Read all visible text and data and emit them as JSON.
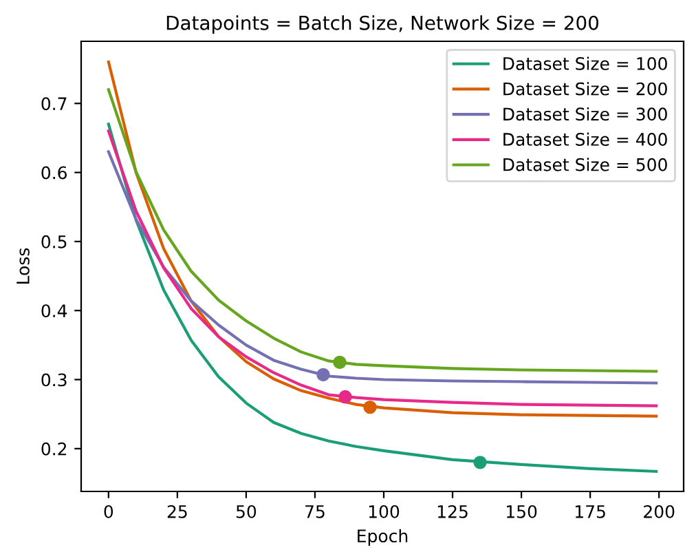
{
  "chart_data": {
    "type": "line",
    "title": "Datapoints = Batch Size, Network Size = 200",
    "xlabel": "Epoch",
    "ylabel": "Loss",
    "xlim": [
      -9.95,
      208.95
    ],
    "ylim": [
      0.138,
      0.79
    ],
    "xticks": [
      0,
      25,
      50,
      75,
      100,
      125,
      150,
      175,
      200
    ],
    "yticks": [
      0.2,
      0.3,
      0.4,
      0.5,
      0.6,
      0.7
    ],
    "grid": false,
    "legend": "top right",
    "marker": "none",
    "line_style": "solid",
    "series": [
      {
        "name": "Dataset Size = 100",
        "color": "#1b9e77",
        "x": [
          0,
          10,
          20,
          30,
          40,
          50,
          60,
          70,
          80,
          90,
          100,
          125,
          150,
          175,
          199
        ],
        "values": [
          0.67,
          0.531,
          0.43,
          0.357,
          0.304,
          0.266,
          0.238,
          0.222,
          0.211,
          0.203,
          0.197,
          0.184,
          0.177,
          0.171,
          0.167
        ]
      },
      {
        "name": "Dataset Size = 200",
        "color": "#d95f02",
        "x": [
          0,
          10,
          20,
          30,
          40,
          50,
          60,
          70,
          80,
          90,
          100,
          125,
          150,
          175,
          199
        ],
        "values": [
          0.76,
          0.6,
          0.49,
          0.414,
          0.362,
          0.326,
          0.301,
          0.284,
          0.273,
          0.264,
          0.259,
          0.252,
          0.249,
          0.248,
          0.247
        ]
      },
      {
        "name": "Dataset Size = 300",
        "color": "#7570b3",
        "x": [
          0,
          10,
          20,
          30,
          40,
          50,
          60,
          70,
          80,
          90,
          100,
          125,
          150,
          175,
          199
        ],
        "values": [
          0.63,
          0.532,
          0.463,
          0.414,
          0.379,
          0.35,
          0.328,
          0.315,
          0.305,
          0.302,
          0.3,
          0.298,
          0.297,
          0.296,
          0.295
        ]
      },
      {
        "name": "Dataset Size = 400",
        "color": "#e7298a",
        "x": [
          0,
          10,
          20,
          30,
          40,
          50,
          60,
          70,
          80,
          90,
          100,
          125,
          150,
          175,
          199
        ],
        "values": [
          0.66,
          0.544,
          0.462,
          0.403,
          0.362,
          0.333,
          0.31,
          0.292,
          0.278,
          0.274,
          0.271,
          0.267,
          0.264,
          0.263,
          0.262
        ]
      },
      {
        "name": "Dataset Size = 500",
        "color": "#66a61e",
        "x": [
          0,
          10,
          20,
          30,
          40,
          50,
          60,
          70,
          80,
          90,
          100,
          125,
          150,
          175,
          199
        ],
        "values": [
          0.72,
          0.601,
          0.517,
          0.457,
          0.415,
          0.385,
          0.36,
          0.34,
          0.327,
          0.322,
          0.32,
          0.316,
          0.314,
          0.313,
          0.312
        ]
      },
      {
        "type": "scatter",
        "marker": "circle",
        "color": "#1b9e77",
        "x": [
          135
        ],
        "values": [
          0.18
        ]
      },
      {
        "type": "scatter",
        "marker": "circle",
        "color": "#d95f02",
        "x": [
          95
        ],
        "values": [
          0.26
        ]
      },
      {
        "type": "scatter",
        "marker": "circle",
        "color": "#7570b3",
        "x": [
          78
        ],
        "values": [
          0.307
        ]
      },
      {
        "type": "scatter",
        "marker": "circle",
        "color": "#e7298a",
        "x": [
          86
        ],
        "values": [
          0.275
        ]
      },
      {
        "type": "scatter",
        "marker": "circle",
        "color": "#66a61e",
        "x": [
          84
        ],
        "values": [
          0.325
        ]
      }
    ]
  }
}
